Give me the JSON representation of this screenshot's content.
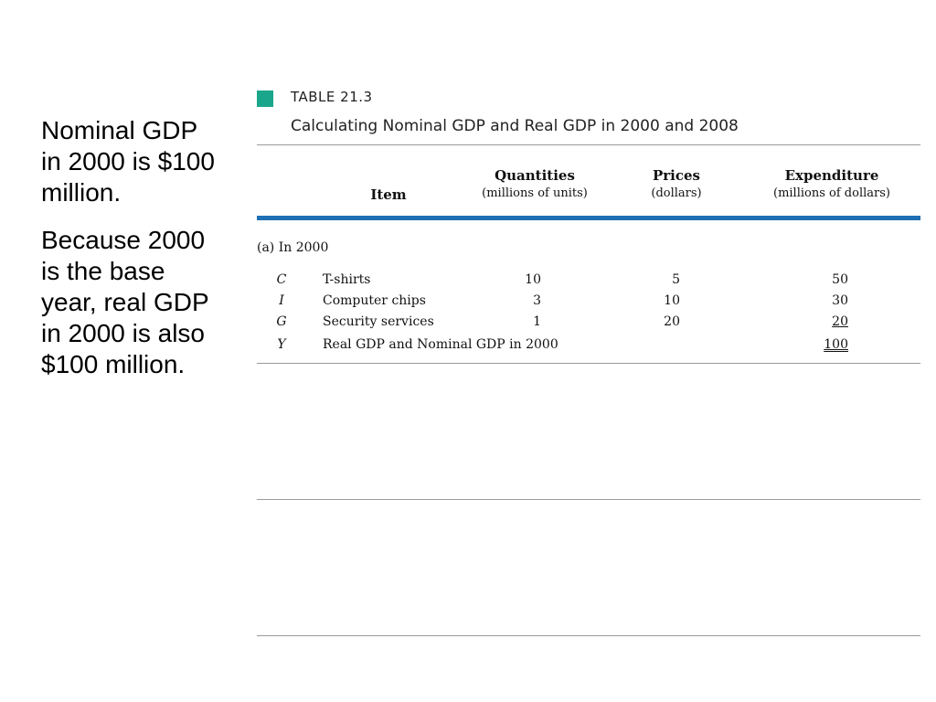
{
  "notes": [
    "Nominal GDP in 2000 is $100 million.",
    "Because 2000 is the base year, real GDP in 2000 is also $100 million."
  ],
  "table": {
    "label": "TABLE 21.3",
    "title": "Calculating Nominal GDP and Real GDP in 2000 and 2008",
    "columns": [
      {
        "main": "Item",
        "sub": ""
      },
      {
        "main": "Quantities",
        "sub": "(millions of units)"
      },
      {
        "main": "Prices",
        "sub": "(dollars)"
      },
      {
        "main": "Expenditure",
        "sub": "(millions of dollars)"
      }
    ],
    "section": "(a) In 2000",
    "rows": [
      {
        "symbol": "C",
        "item": "T-shirts",
        "quantity": "10",
        "price": "5",
        "expenditure": "50"
      },
      {
        "symbol": "I",
        "item": "Computer chips",
        "quantity": "3",
        "price": "10",
        "expenditure": "30"
      },
      {
        "symbol": "G",
        "item": "Security services",
        "quantity": "1",
        "price": "20",
        "expenditure": "20"
      },
      {
        "symbol": "Y",
        "item": "Real GDP and Nominal GDP in 2000",
        "quantity": "",
        "price": "",
        "expenditure": "100"
      }
    ],
    "colors": {
      "marker": "#1aa68a",
      "blue_rule": "#1f6fb5"
    }
  }
}
